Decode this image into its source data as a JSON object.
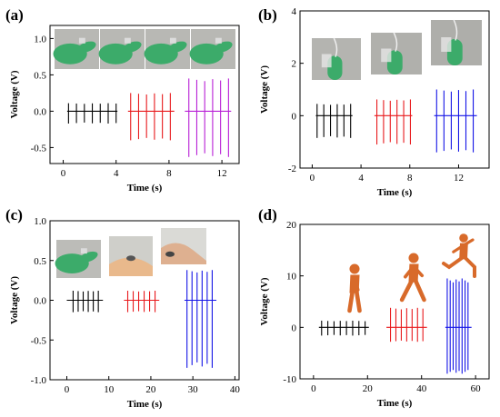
{
  "colors": {
    "black_series": "#000000",
    "red_series": "#e8191c",
    "purple_series": "#b81fd6",
    "blue_series": "#1414e6",
    "glove_green": "#3cab6a",
    "runner_orange": "#d86a2a",
    "photo_bg": "#b8b8b4"
  },
  "chart_data": [
    {
      "panel": "(a)",
      "type": "line",
      "xlabel": "Time (s)",
      "ylabel": "Voltage (V)",
      "xlim": [
        -1,
        13.3
      ],
      "ylim": [
        -0.72,
        1.18
      ],
      "xticks": [
        0,
        4,
        8,
        12
      ],
      "yticks": [
        -0.5,
        0.0,
        0.5,
        1.0
      ],
      "ytick_labels": [
        "-0.5",
        "0.0",
        "0.5",
        "1.0"
      ],
      "grid": false,
      "series": [
        {
          "color": "#000000",
          "spike_times": [
            0.4,
            1.0,
            1.6,
            2.2,
            2.8,
            3.4,
            4.0
          ],
          "pos": 0.11,
          "neg": -0.17,
          "baseline": [
            0.3,
            4.1
          ]
        },
        {
          "color": "#e8191c",
          "spike_times": [
            5.1,
            5.7,
            6.3,
            6.9,
            7.5,
            8.1
          ],
          "pos": 0.25,
          "neg": -0.4,
          "baseline": [
            4.9,
            8.4
          ]
        },
        {
          "color": "#b81fd6",
          "spike_times": [
            9.5,
            10.1,
            10.7,
            11.3,
            11.9,
            12.5
          ],
          "pos": 0.45,
          "neg": -0.63,
          "baseline": [
            9.2,
            12.7
          ]
        }
      ],
      "photos": [
        "bending finger sequence"
      ]
    },
    {
      "panel": "(b)",
      "type": "line",
      "xlabel": "Time (s)",
      "ylabel": "Voltage (V)",
      "xlim": [
        -1,
        14.5
      ],
      "ylim": [
        -2,
        4
      ],
      "xticks": [
        0,
        4,
        8,
        12
      ],
      "yticks": [
        -2,
        0,
        2,
        4
      ],
      "ytick_labels": [
        "-2",
        "0",
        "2",
        "4"
      ],
      "grid": false,
      "series": [
        {
          "color": "#000000",
          "spike_times": [
            0.4,
            0.95,
            1.5,
            2.05,
            2.6,
            3.15
          ],
          "pos": 0.45,
          "neg": -0.85,
          "baseline": [
            0.3,
            3.3
          ]
        },
        {
          "color": "#e8191c",
          "spike_times": [
            5.3,
            5.85,
            6.4,
            6.95,
            7.5,
            8.05
          ],
          "pos": 0.62,
          "neg": -1.1,
          "baseline": [
            5.1,
            8.2
          ]
        },
        {
          "color": "#1414e6",
          "spike_times": [
            10.2,
            10.8,
            11.4,
            12.0,
            12.6,
            13.2
          ],
          "pos": 1.0,
          "neg": -1.4,
          "baseline": [
            10.0,
            13.5
          ]
        }
      ],
      "photos": [
        "light press",
        "medium press",
        "strong press"
      ]
    },
    {
      "panel": "(c)",
      "type": "line",
      "xlabel": "Time (s)",
      "ylabel": "Voltage (V)",
      "xlim": [
        -4,
        41
      ],
      "ylim": [
        -1.0,
        1.0
      ],
      "xticks": [
        0,
        10,
        20,
        30,
        40
      ],
      "yticks": [
        -1.0,
        -0.5,
        0.0,
        0.5,
        1.0
      ],
      "ytick_labels": [
        "-1.0",
        "-0.5",
        "0.0",
        "0.5",
        "1.0"
      ],
      "grid": false,
      "series": [
        {
          "color": "#000000",
          "spike_times": [
            1.5,
            2.7,
            3.9,
            5.1,
            6.3,
            7.5
          ],
          "pos": 0.12,
          "neg": -0.15,
          "baseline": [
            0.0,
            8.6
          ]
        },
        {
          "color": "#e8191c",
          "spike_times": [
            14.5,
            15.8,
            17.1,
            18.4,
            19.7,
            21.0
          ],
          "pos": 0.12,
          "neg": -0.15,
          "baseline": [
            13.6,
            22.0
          ]
        },
        {
          "color": "#1414e6",
          "spike_times": [
            28.6,
            29.8,
            31.0,
            32.2,
            33.4,
            34.6
          ],
          "pos": 0.38,
          "neg": -0.85,
          "baseline": [
            28.0,
            35.6
          ]
        }
      ],
      "photos": [
        "finger bending",
        "elbow bending",
        "knee bending"
      ]
    },
    {
      "panel": "(d)",
      "type": "line",
      "xlabel": "Time (s)",
      "ylabel": "Voltage (V)",
      "xlim": [
        -5,
        65
      ],
      "ylim": [
        -10,
        20
      ],
      "xticks": [
        0,
        20,
        40,
        60
      ],
      "yticks": [
        -10,
        0,
        10,
        20
      ],
      "ytick_labels": [
        "-10",
        "0",
        "10",
        "20"
      ],
      "grid": false,
      "series": [
        {
          "color": "#000000",
          "spike_times": [
            3,
            5.3,
            7.6,
            9.9,
            12.2,
            14.5,
            16.8,
            19.1
          ],
          "pos": 1.3,
          "neg": -1.6,
          "baseline": [
            2.0,
            20.5
          ]
        },
        {
          "color": "#e8191c",
          "spike_times": [
            28.5,
            30.5,
            32.5,
            34.5,
            36.5,
            38.5,
            40.5
          ],
          "pos": 3.8,
          "neg": -2.8,
          "baseline": [
            27.0,
            42.0
          ]
        },
        {
          "color": "#1414e6",
          "spike_times": [
            49.5,
            50.6,
            51.7,
            52.8,
            53.9,
            55.0,
            56.1,
            57.2
          ],
          "pos": 9.5,
          "neg": -9.0,
          "baseline": [
            48.8,
            58.5
          ]
        }
      ],
      "figures": [
        "walking",
        "brisk walking",
        "running"
      ]
    }
  ]
}
